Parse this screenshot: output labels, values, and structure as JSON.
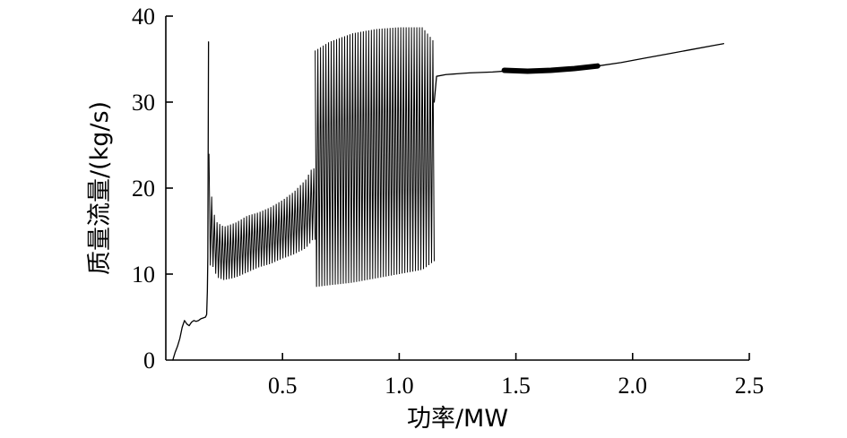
{
  "chart_data": {
    "type": "line",
    "title": "",
    "xlabel": "功率/MW",
    "ylabel": "质量流量/(kg/s)",
    "xlim": [
      0,
      2.5
    ],
    "ylim": [
      0,
      40
    ],
    "x_ticks": [
      "0.5",
      "1.0",
      "1.5",
      "2.0",
      "2.5"
    ],
    "y_ticks": [
      "0",
      "10",
      "20",
      "30",
      "40"
    ],
    "grid": false,
    "legend": "none",
    "line_color": "#000000",
    "series": [
      {
        "segments": [
          {
            "style": "trend",
            "x": [
              0.03,
              0.04,
              0.05,
              0.06,
              0.07,
              0.08,
              0.09,
              0.1,
              0.11,
              0.12,
              0.13,
              0.14,
              0.15,
              0.16,
              0.17,
              0.175,
              0.178,
              0.18,
              0.183
            ],
            "y": [
              0.0,
              0.9,
              1.6,
              2.5,
              3.8,
              4.6,
              4.2,
              4.0,
              4.4,
              4.6,
              4.5,
              4.6,
              4.8,
              4.9,
              5.0,
              5.3,
              8.0,
              12.0,
              37.0
            ]
          },
          {
            "style": "oscillation",
            "x": [
              0.185,
              0.2,
              0.22,
              0.25,
              0.3,
              0.35,
              0.4,
              0.45,
              0.5,
              0.55,
              0.6,
              0.63,
              0.64
            ],
            "upper": [
              24.0,
              17.5,
              16.0,
              15.5,
              16.0,
              16.8,
              17.2,
              17.8,
              18.6,
              19.6,
              21.0,
              22.5,
              22.0
            ],
            "lower": [
              11.0,
              11.0,
              9.6,
              9.3,
              9.6,
              10.2,
              10.8,
              11.2,
              11.8,
              12.3,
              13.0,
              14.0,
              14.0
            ]
          },
          {
            "style": "oscillation",
            "x": [
              0.64,
              0.7,
              0.8,
              0.9,
              1.0,
              1.1,
              1.15
            ],
            "upper": [
              36.0,
              37.0,
              38.0,
              38.5,
              38.7,
              38.7,
              37.0
            ],
            "lower": [
              8.5,
              8.7,
              9.0,
              9.5,
              10.0,
              10.5,
              11.5
            ]
          },
          {
            "style": "trend",
            "x": [
              1.15,
              1.16,
              1.2,
              1.3,
              1.4,
              1.45
            ],
            "y": [
              30.0,
              33.0,
              33.2,
              33.4,
              33.5,
              33.6
            ]
          },
          {
            "style": "thick",
            "x": [
              1.45,
              1.55,
              1.65,
              1.75,
              1.85
            ],
            "y": [
              33.7,
              33.6,
              33.7,
              33.9,
              34.2
            ]
          },
          {
            "style": "trend",
            "x": [
              1.85,
              1.95,
              2.05,
              2.15,
              2.25,
              2.35,
              2.39
            ],
            "y": [
              34.2,
              34.6,
              35.1,
              35.6,
              36.1,
              36.6,
              36.8
            ]
          }
        ]
      }
    ]
  }
}
